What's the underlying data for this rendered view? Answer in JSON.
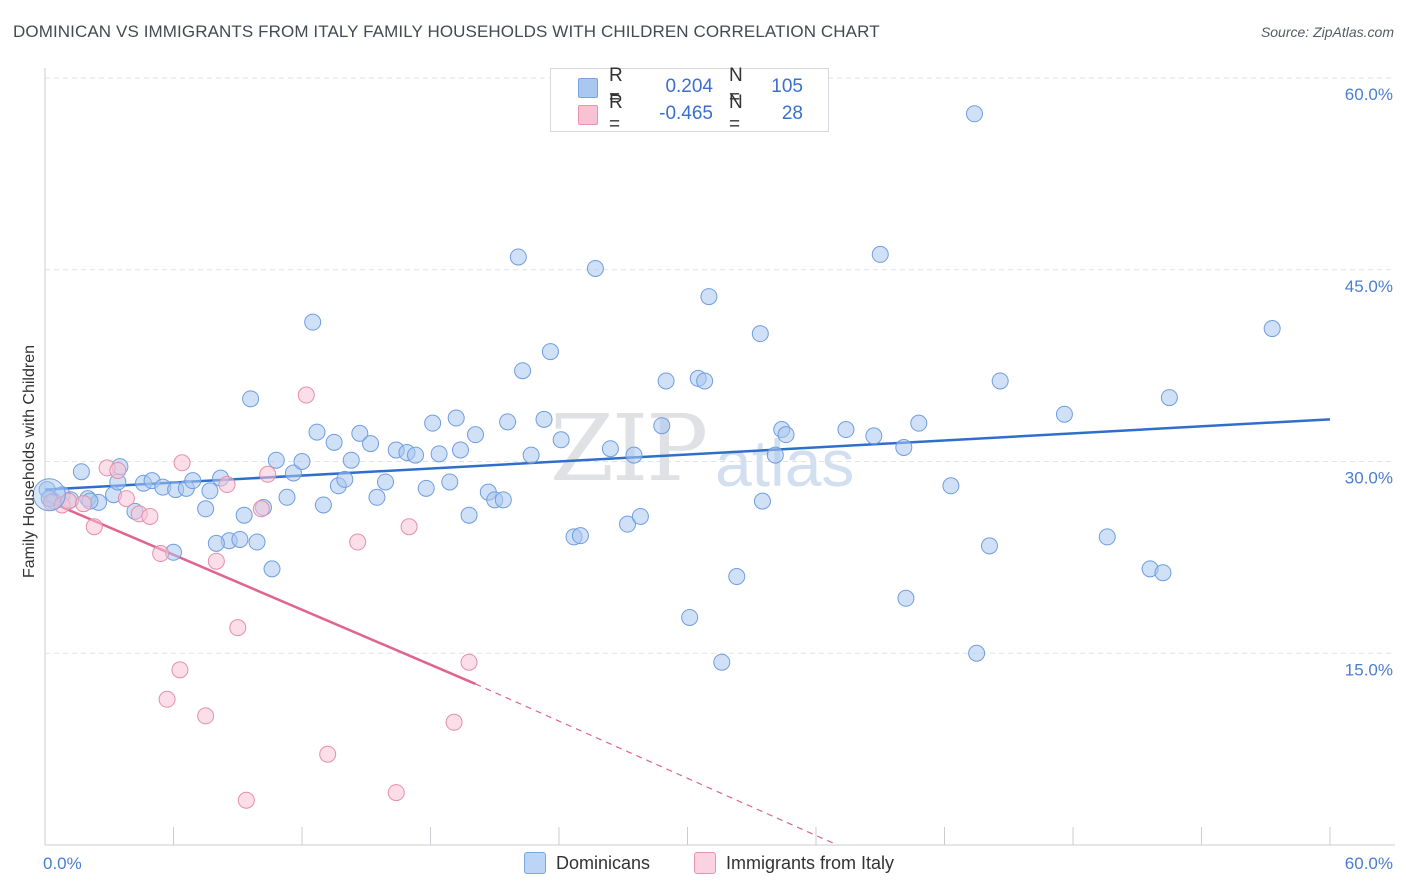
{
  "title": "DOMINICAN VS IMMIGRANTS FROM ITALY FAMILY HOUSEHOLDS WITH CHILDREN CORRELATION CHART",
  "source": "Source: ZipAtlas.com",
  "watermark": {
    "zip": "ZIP",
    "atlas": "atlas"
  },
  "legend": {
    "rows": [
      {
        "r_label": "R =",
        "r_value": "0.204",
        "n_label": "N =",
        "n_value": "105",
        "color": "#a9c7f0",
        "border": "#7aa6e0"
      },
      {
        "r_label": "R =",
        "r_value": "-0.465",
        "n_label": "N =",
        "n_value": "28",
        "color": "#f7c3d3",
        "border": "#e894b0"
      }
    ]
  },
  "bottom_legend": [
    {
      "label": "Dominicans",
      "color": "#bcd4f5",
      "border": "#7aa6e0"
    },
    {
      "label": "Immigrants from Italy",
      "color": "#fbd3e0",
      "border": "#e894b0"
    }
  ],
  "chart_data": {
    "type": "scatter",
    "title": "DOMINICAN VS IMMIGRANTS FROM ITALY FAMILY HOUSEHOLDS WITH CHILDREN CORRELATION CHART",
    "xlabel": "",
    "ylabel": "Family Households with Children",
    "xlim": [
      0,
      60
    ],
    "ylim": [
      0,
      60
    ],
    "x_tick_labels": [
      "0.0%",
      "60.0%"
    ],
    "y_ticks": [
      15,
      30,
      45,
      60
    ],
    "y_tick_labels": [
      "15.0%",
      "30.0%",
      "45.0%",
      "60.0%"
    ],
    "series": [
      {
        "name": "Dominicans",
        "color": "#a9c7f0",
        "edge": "#6f9ede",
        "trend": {
          "x": [
            0,
            60
          ],
          "y": [
            27.8,
            33.3
          ],
          "color": "#2f6fcc",
          "dash_from": null
        },
        "points": [
          [
            0.1,
            27.8
          ],
          [
            0.4,
            26.9
          ],
          [
            0.8,
            27.4
          ],
          [
            1.2,
            27.0
          ],
          [
            1.7,
            29.2
          ],
          [
            2.0,
            27.1
          ],
          [
            2.5,
            26.8
          ],
          [
            3.2,
            27.4
          ],
          [
            3.5,
            29.6
          ],
          [
            3.4,
            28.4
          ],
          [
            4.2,
            26.1
          ],
          [
            4.6,
            28.3
          ],
          [
            5.0,
            28.5
          ],
          [
            5.5,
            28.0
          ],
          [
            6.1,
            27.8
          ],
          [
            6.6,
            27.9
          ],
          [
            6.9,
            28.5
          ],
          [
            7.5,
            26.3
          ],
          [
            7.7,
            27.7
          ],
          [
            8.2,
            28.7
          ],
          [
            8.6,
            23.8
          ],
          [
            9.1,
            23.9
          ],
          [
            9.3,
            25.8
          ],
          [
            9.6,
            34.9
          ],
          [
            9.9,
            23.7
          ],
          [
            10.2,
            26.4
          ],
          [
            10.6,
            21.6
          ],
          [
            10.8,
            30.1
          ],
          [
            11.3,
            27.2
          ],
          [
            11.6,
            29.1
          ],
          [
            12.0,
            30.0
          ],
          [
            12.5,
            40.9
          ],
          [
            12.7,
            32.3
          ],
          [
            13.0,
            26.6
          ],
          [
            13.5,
            31.5
          ],
          [
            13.7,
            28.1
          ],
          [
            14.0,
            28.6
          ],
          [
            14.3,
            30.1
          ],
          [
            14.7,
            32.2
          ],
          [
            15.2,
            31.4
          ],
          [
            15.5,
            27.2
          ],
          [
            15.9,
            28.4
          ],
          [
            16.4,
            30.9
          ],
          [
            16.9,
            30.7
          ],
          [
            17.3,
            30.5
          ],
          [
            17.8,
            27.9
          ],
          [
            18.1,
            33.0
          ],
          [
            18.4,
            30.6
          ],
          [
            18.9,
            28.4
          ],
          [
            19.2,
            33.4
          ],
          [
            19.4,
            30.9
          ],
          [
            19.8,
            25.8
          ],
          [
            20.1,
            32.1
          ],
          [
            20.7,
            27.6
          ],
          [
            21.0,
            27.0
          ],
          [
            21.4,
            27.0
          ],
          [
            21.6,
            33.1
          ],
          [
            22.1,
            46.0
          ],
          [
            22.3,
            37.1
          ],
          [
            22.7,
            30.5
          ],
          [
            23.3,
            33.3
          ],
          [
            23.6,
            38.6
          ],
          [
            24.1,
            31.7
          ],
          [
            24.7,
            24.1
          ],
          [
            25.0,
            24.2
          ],
          [
            25.7,
            45.1
          ],
          [
            26.4,
            31.0
          ],
          [
            27.2,
            25.1
          ],
          [
            27.5,
            30.5
          ],
          [
            27.8,
            25.7
          ],
          [
            28.8,
            32.8
          ],
          [
            29.0,
            36.3
          ],
          [
            30.1,
            17.8
          ],
          [
            30.5,
            36.5
          ],
          [
            30.8,
            36.3
          ],
          [
            31.0,
            42.9
          ],
          [
            31.6,
            14.3
          ],
          [
            32.3,
            21.0
          ],
          [
            33.4,
            40.0
          ],
          [
            33.5,
            26.9
          ],
          [
            34.1,
            30.5
          ],
          [
            34.4,
            32.5
          ],
          [
            34.6,
            32.1
          ],
          [
            37.4,
            32.5
          ],
          [
            38.7,
            32.0
          ],
          [
            39.0,
            46.2
          ],
          [
            40.2,
            19.3
          ],
          [
            40.1,
            31.1
          ],
          [
            40.8,
            33.0
          ],
          [
            42.3,
            28.1
          ],
          [
            43.4,
            57.2
          ],
          [
            43.5,
            15.0
          ],
          [
            44.1,
            23.4
          ],
          [
            44.6,
            36.3
          ],
          [
            47.6,
            33.7
          ],
          [
            49.6,
            24.1
          ],
          [
            51.6,
            21.6
          ],
          [
            52.2,
            21.3
          ],
          [
            52.5,
            35.0
          ],
          [
            57.3,
            40.4
          ],
          [
            0.2,
            27.1
          ],
          [
            2.1,
            26.9
          ],
          [
            6.0,
            22.9
          ],
          [
            8.0,
            23.6
          ]
        ]
      },
      {
        "name": "Immigrants from Italy",
        "color": "#f7c3d3",
        "edge": "#e48fac",
        "trend": {
          "x": [
            0,
            20.1
          ],
          "y": [
            27.0,
            12.6
          ],
          "color": "#e0648f",
          "dash_to": [
            37.0,
            0
          ]
        },
        "points": [
          [
            0.3,
            26.8
          ],
          [
            0.8,
            26.6
          ],
          [
            1.1,
            26.9
          ],
          [
            1.8,
            26.7
          ],
          [
            2.3,
            24.9
          ],
          [
            2.9,
            29.5
          ],
          [
            3.4,
            29.3
          ],
          [
            3.8,
            27.1
          ],
          [
            4.4,
            25.9
          ],
          [
            4.9,
            25.7
          ],
          [
            5.4,
            22.8
          ],
          [
            5.7,
            11.4
          ],
          [
            6.3,
            13.7
          ],
          [
            6.4,
            29.9
          ],
          [
            7.5,
            10.1
          ],
          [
            8.0,
            22.2
          ],
          [
            8.5,
            28.2
          ],
          [
            9.0,
            17.0
          ],
          [
            9.4,
            3.5
          ],
          [
            10.1,
            26.3
          ],
          [
            10.4,
            29.0
          ],
          [
            12.2,
            35.2
          ],
          [
            13.2,
            7.1
          ],
          [
            14.6,
            23.7
          ],
          [
            16.4,
            4.1
          ],
          [
            17.0,
            24.9
          ],
          [
            19.1,
            9.6
          ],
          [
            19.8,
            14.3
          ]
        ]
      }
    ]
  }
}
